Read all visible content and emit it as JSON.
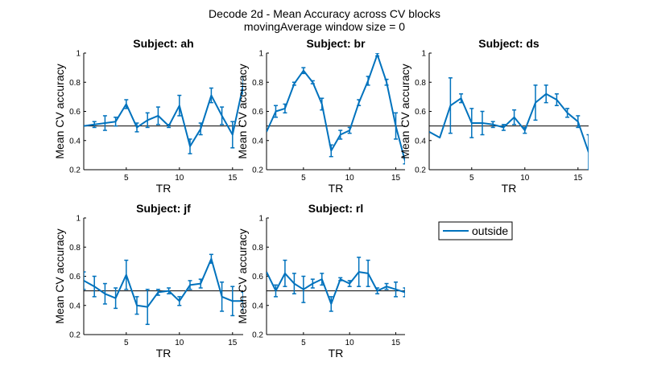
{
  "figure": {
    "title_line1": "Decode 2d - Mean Accuracy across CV blocks",
    "title_line2": "movingAverage window size = 0"
  },
  "legend": {
    "label": "outside"
  },
  "colors": {
    "series": "#0072BD",
    "axis": "#000000",
    "reference": "#000000"
  },
  "chart_data": [
    {
      "type": "line",
      "title": "Subject: ah",
      "xlabel": "TR",
      "ylabel": "Mean CV accuracy",
      "xlim": [
        1,
        16
      ],
      "ylim": [
        0.2,
        1
      ],
      "xticks": [
        5,
        10,
        15
      ],
      "yticks": [
        0.2,
        0.4,
        0.6,
        0.8,
        1
      ],
      "reference_line": 0.5,
      "grid": false,
      "series": [
        {
          "name": "outside",
          "x": [
            1,
            2,
            3,
            4,
            5,
            6,
            7,
            8,
            9,
            10,
            11,
            12,
            13,
            14,
            15,
            16
          ],
          "y": [
            0.5,
            0.51,
            0.52,
            0.53,
            0.65,
            0.49,
            0.54,
            0.57,
            0.5,
            0.64,
            0.36,
            0.48,
            0.71,
            0.57,
            0.44,
            0.78
          ],
          "err": [
            0,
            0.02,
            0.05,
            0.03,
            0.03,
            0.03,
            0.05,
            0.06,
            0.01,
            0.07,
            0.05,
            0.04,
            0.05,
            0.06,
            0.09,
            0.06
          ]
        }
      ]
    },
    {
      "type": "line",
      "title": "Subject: br",
      "xlabel": "TR",
      "ylabel": "Mean CV accuracy",
      "xlim": [
        1,
        16
      ],
      "ylim": [
        0.2,
        1
      ],
      "xticks": [
        5,
        10,
        15
      ],
      "yticks": [
        0.2,
        0.4,
        0.6,
        0.8,
        1
      ],
      "reference_line": 0.5,
      "grid": false,
      "series": [
        {
          "name": "outside",
          "x": [
            1,
            2,
            3,
            4,
            5,
            6,
            7,
            8,
            9,
            10,
            11,
            12,
            13,
            14,
            15,
            16
          ],
          "y": [
            0.46,
            0.6,
            0.62,
            0.79,
            0.88,
            0.8,
            0.65,
            0.33,
            0.44,
            0.47,
            0.66,
            0.81,
            0.99,
            0.8,
            0.5,
            0.26
          ],
          "err": [
            0,
            0.04,
            0.03,
            0.01,
            0.02,
            0.01,
            0.04,
            0.04,
            0.03,
            0.02,
            0.02,
            0.03,
            0.01,
            0.02,
            0.09,
            0.02
          ]
        }
      ]
    },
    {
      "type": "line",
      "title": "Subject: ds",
      "xlabel": "TR",
      "ylabel": "Mean CV accuracy",
      "xlim": [
        1,
        16
      ],
      "ylim": [
        0.2,
        1
      ],
      "xticks": [
        5,
        10,
        15
      ],
      "yticks": [
        0.2,
        0.4,
        0.6,
        0.8,
        1
      ],
      "reference_line": 0.5,
      "grid": false,
      "series": [
        {
          "name": "outside",
          "x": [
            1,
            2,
            3,
            4,
            5,
            6,
            7,
            8,
            9,
            10,
            11,
            12,
            13,
            14,
            15,
            16
          ],
          "y": [
            0.46,
            0.42,
            0.64,
            0.69,
            0.52,
            0.52,
            0.51,
            0.49,
            0.56,
            0.47,
            0.66,
            0.72,
            0.68,
            0.59,
            0.53,
            0.32
          ],
          "err": [
            0,
            0,
            0.19,
            0.03,
            0.1,
            0.08,
            0.02,
            0.02,
            0.05,
            0.02,
            0.12,
            0.06,
            0.04,
            0.03,
            0.04,
            0.12
          ]
        }
      ]
    },
    {
      "type": "line",
      "title": "Subject: jf",
      "xlabel": "TR",
      "ylabel": "Mean CV accuracy",
      "xlim": [
        1,
        16
      ],
      "ylim": [
        0.2,
        1
      ],
      "xticks": [
        5,
        10,
        15
      ],
      "yticks": [
        0.2,
        0.4,
        0.6,
        0.8,
        1
      ],
      "reference_line": 0.5,
      "grid": false,
      "series": [
        {
          "name": "outside",
          "x": [
            1,
            2,
            3,
            4,
            5,
            6,
            7,
            8,
            9,
            10,
            11,
            12,
            13,
            14,
            15,
            16
          ],
          "y": [
            0.57,
            0.53,
            0.48,
            0.45,
            0.61,
            0.4,
            0.39,
            0.49,
            0.5,
            0.43,
            0.54,
            0.55,
            0.72,
            0.46,
            0.43,
            0.43
          ],
          "err": [
            0.06,
            0.07,
            0.07,
            0.07,
            0.1,
            0.06,
            0.12,
            0.02,
            0.02,
            0.03,
            0.03,
            0.03,
            0.03,
            0.1,
            0.1,
            0.06
          ]
        }
      ]
    },
    {
      "type": "line",
      "title": "Subject: rl",
      "xlabel": "TR",
      "ylabel": "Mean CV accuracy",
      "xlim": [
        1,
        16
      ],
      "ylim": [
        0.2,
        1
      ],
      "xticks": [
        5,
        10,
        15
      ],
      "yticks": [
        0.2,
        0.4,
        0.6,
        0.8,
        1
      ],
      "reference_line": 0.5,
      "grid": false,
      "series": [
        {
          "name": "outside",
          "x": [
            1,
            2,
            3,
            4,
            5,
            6,
            7,
            8,
            9,
            10,
            11,
            12,
            13,
            14,
            15,
            16
          ],
          "y": [
            0.63,
            0.5,
            0.62,
            0.55,
            0.51,
            0.55,
            0.58,
            0.41,
            0.58,
            0.55,
            0.63,
            0.62,
            0.5,
            0.53,
            0.51,
            0.49
          ],
          "err": [
            0,
            0.04,
            0.09,
            0.07,
            0.09,
            0.03,
            0.04,
            0.05,
            0.01,
            0.02,
            0.1,
            0.09,
            0.02,
            0.02,
            0.05,
            0.03
          ]
        }
      ]
    }
  ]
}
